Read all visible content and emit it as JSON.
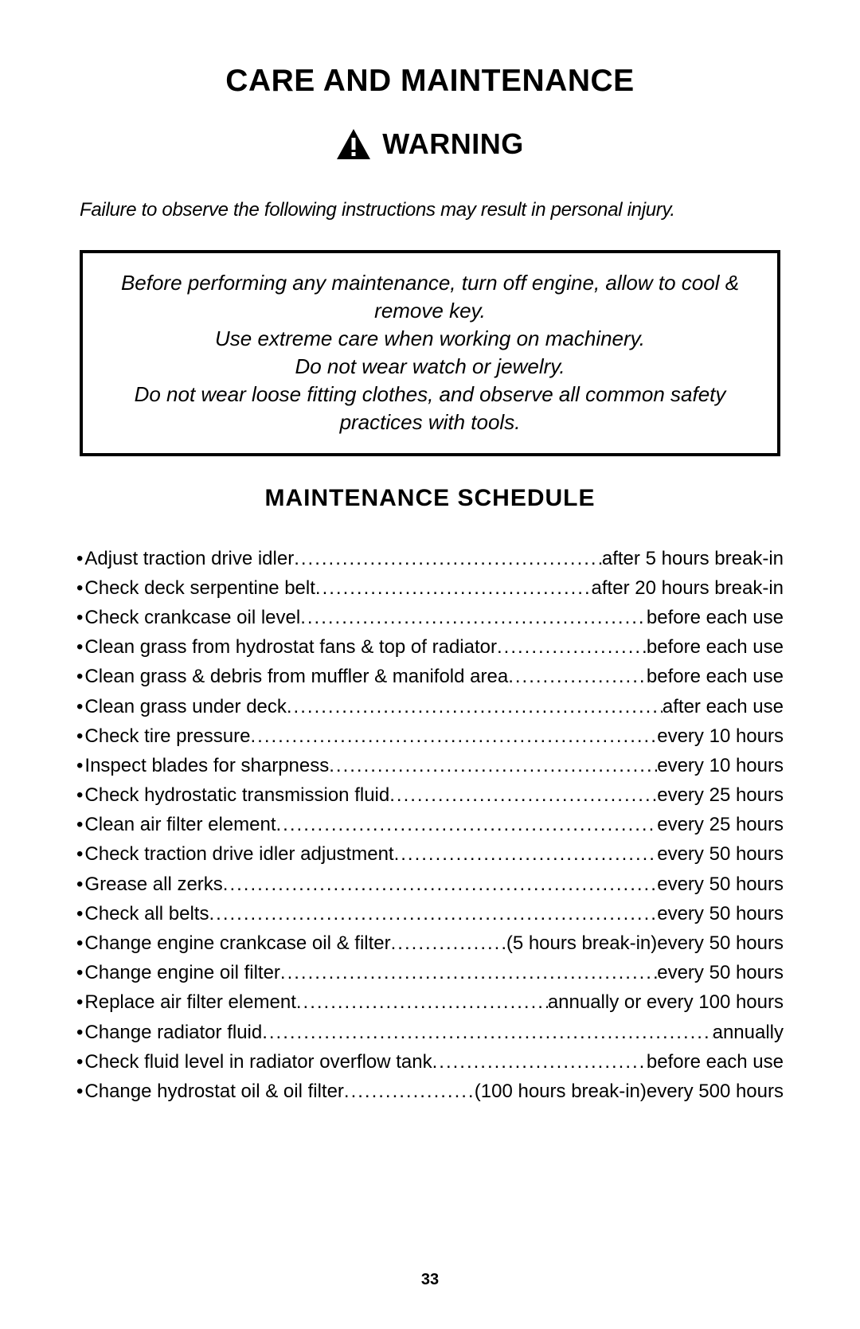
{
  "page": {
    "title": "CARE AND MAINTENANCE",
    "warning_label": "WARNING",
    "warning_subtext": "Failure to observe the following instructions may result in personal injury.",
    "safety_box_lines": [
      "Before performing any maintenance, turn off engine, allow to cool & remove key.",
      "Use extreme care when working on machinery.",
      "Do not wear watch or jewelry.",
      "Do not wear loose fitting clothes, and observe all common safety practices with tools."
    ],
    "schedule_title": "MAINTENANCE SCHEDULE",
    "page_number": "33"
  },
  "schedule": [
    {
      "task": "Adjust traction drive idler",
      "when": "after 5 hours break-in"
    },
    {
      "task": "Check deck serpentine belt",
      "when": "after 20 hours break-in"
    },
    {
      "task": "Check crankcase oil level",
      "when": "before each use"
    },
    {
      "task": "Clean grass from hydrostat fans & top of radiator",
      "when": "before each use"
    },
    {
      "task": "Clean grass & debris from muffler & manifold area",
      "when": "before each use"
    },
    {
      "task": "Clean grass under deck",
      "when": "after each use"
    },
    {
      "task": "Check tire pressure",
      "when": "every 10 hours"
    },
    {
      "task": "Inspect blades for sharpness",
      "when": "every 10 hours"
    },
    {
      "task": "Check hydrostatic transmission fluid",
      "when": "every 25 hours"
    },
    {
      "task": "Clean air filter element",
      "when": "every 25 hours"
    },
    {
      "task": "Check traction drive idler adjustment",
      "when": "every 50 hours"
    },
    {
      "task": "Grease all zerks",
      "when": "every 50 hours"
    },
    {
      "task": "Check all belts",
      "when": "every 50 hours"
    },
    {
      "task": "Change engine crankcase oil & filter",
      "when": "(5 hours break-in)every 50 hours"
    },
    {
      "task": "Change engine oil filter",
      "when": "every 50 hours"
    },
    {
      "task": "Replace air filter element",
      "when": "annually or every 100 hours"
    },
    {
      "task": "Change radiator fluid",
      "when": "annually"
    },
    {
      "task": "Check fluid level in radiator overflow tank",
      "when": "before each use"
    },
    {
      "task": "Change hydrostat oil & oil filter",
      "when": "(100 hours break-in)every 500 hours"
    }
  ],
  "colors": {
    "text": "#000000",
    "background": "#ffffff",
    "border": "#000000"
  },
  "typography": {
    "title_fontsize": 39,
    "warning_fontsize": 36,
    "subtext_fontsize": 24,
    "safety_fontsize": 26,
    "schedule_title_fontsize": 30,
    "item_fontsize": 24,
    "page_number_fontsize": 20,
    "font_family": "Arial"
  }
}
